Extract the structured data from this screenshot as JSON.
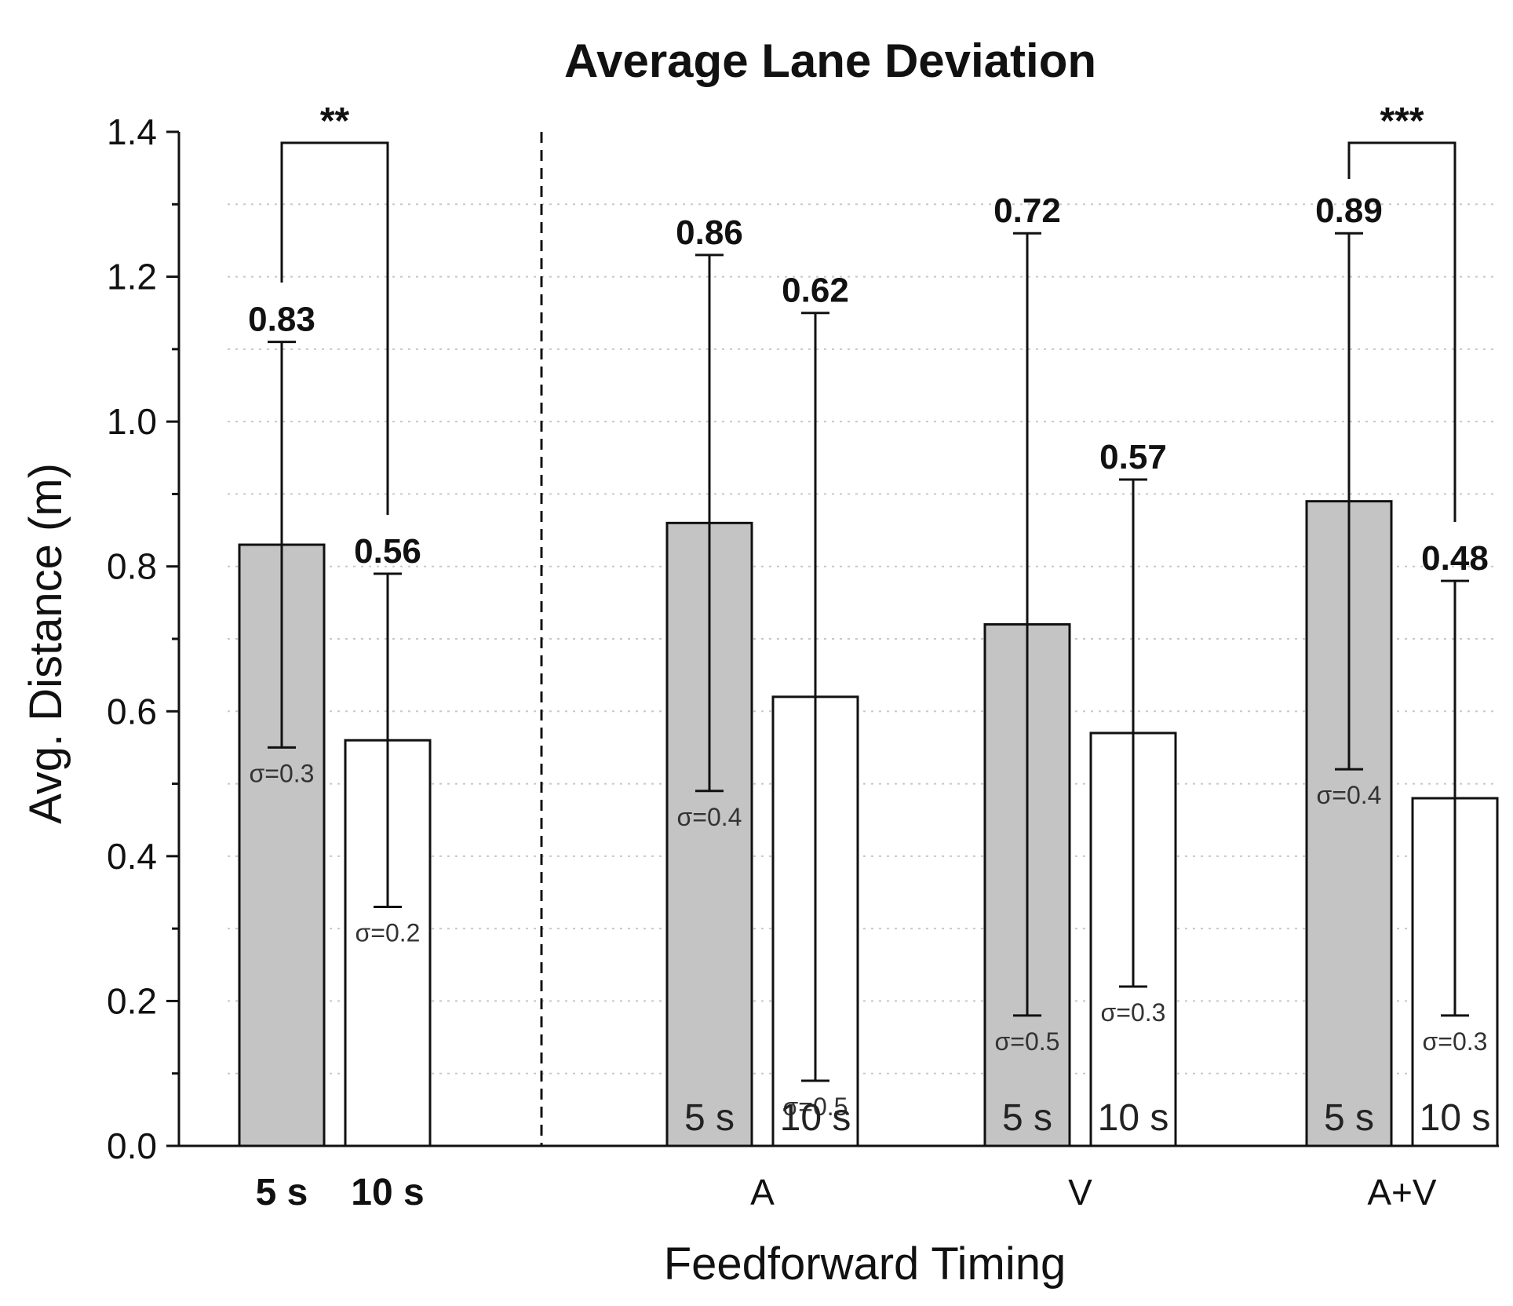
{
  "chart_data": {
    "type": "bar",
    "title": "Average Lane Deviation",
    "xlabel": "Feedforward Timing",
    "ylabel": "Avg. Distance (m)",
    "ylim": [
      0,
      1.4
    ],
    "yticks": [
      "0.0",
      "0.2",
      "0.4",
      "0.6",
      "0.8",
      "1.0",
      "1.2",
      "1.4"
    ],
    "grid": "dotted horizontal",
    "groups": [
      {
        "label": "",
        "bar_labels": [
          "5 s",
          "10 s"
        ],
        "bars": [
          {
            "timing": "5 s",
            "value": 0.83,
            "value_label": "0.83",
            "err_low": 0.55,
            "err_high": 1.11,
            "sd_label": "σ=0.3",
            "fill": "#c4c4c4"
          },
          {
            "timing": "10 s",
            "value": 0.56,
            "value_label": "0.56",
            "err_low": 0.33,
            "err_high": 0.79,
            "sd_label": "σ=0.2",
            "fill": "#ffffff"
          }
        ],
        "significance": "**"
      },
      {
        "label": "A",
        "bars": [
          {
            "timing": "5 s",
            "value": 0.86,
            "value_label": "0.86",
            "err_low": 0.49,
            "err_high": 1.23,
            "sd_label": "σ=0.4",
            "fill": "#c4c4c4"
          },
          {
            "timing": "10 s",
            "value": 0.62,
            "value_label": "0.62",
            "err_low": 0.09,
            "err_high": 1.15,
            "sd_label": "σ=0.5",
            "fill": "#ffffff"
          }
        ]
      },
      {
        "label": "V",
        "bars": [
          {
            "timing": "5 s",
            "value": 0.72,
            "value_label": "0.72",
            "err_low": 0.18,
            "err_high": 1.26,
            "sd_label": "σ=0.5",
            "fill": "#c4c4c4"
          },
          {
            "timing": "10 s",
            "value": 0.57,
            "value_label": "0.57",
            "err_low": 0.22,
            "err_high": 0.92,
            "sd_label": "σ=0.3",
            "fill": "#ffffff"
          }
        ]
      },
      {
        "label": "A+V",
        "bars": [
          {
            "timing": "5 s",
            "value": 0.89,
            "value_label": "0.89",
            "err_low": 0.52,
            "err_high": 1.26,
            "sd_label": "σ=0.4",
            "fill": "#c4c4c4"
          },
          {
            "timing": "10 s",
            "value": 0.48,
            "value_label": "0.48",
            "err_low": 0.18,
            "err_high": 0.78,
            "sd_label": "σ=0.3",
            "fill": "#ffffff"
          }
        ],
        "significance": "***"
      }
    ]
  }
}
